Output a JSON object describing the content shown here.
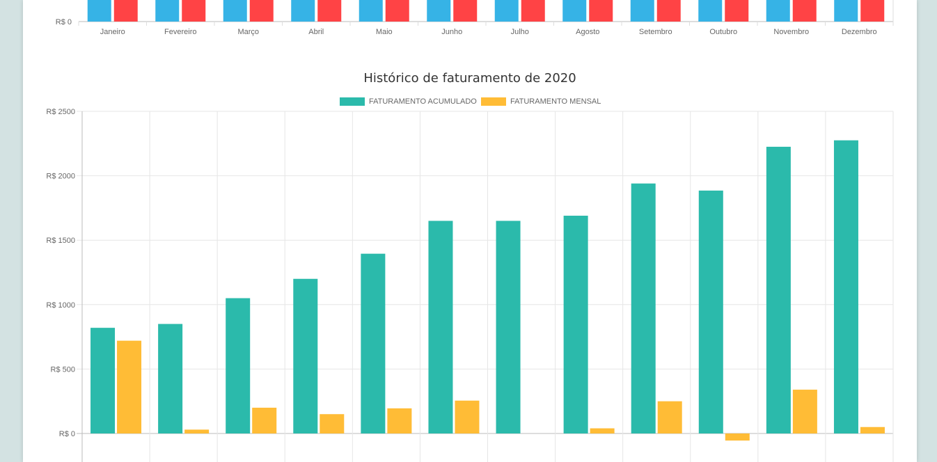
{
  "chart_data": [
    {
      "type": "bar",
      "title": "",
      "categories": [
        "Janeiro",
        "Fevereiro",
        "Março",
        "Abril",
        "Maio",
        "Junho",
        "Julho",
        "Agosto",
        "Setembro",
        "Outubro",
        "Novembro",
        "Dezembro"
      ],
      "series": [
        {
          "color": "#36b3e6"
        },
        {
          "color": "#ff4345"
        }
      ],
      "y_tick_labels": [
        "R$ 0"
      ],
      "note_visible": "cropped; only bottom of bars, baseline tick and month labels visible"
    },
    {
      "type": "bar",
      "title": "Histórico de faturamento de 2020",
      "categories": [
        "",
        "",
        "",
        "",
        "",
        "",
        "",
        "",
        "",
        "",
        "",
        ""
      ],
      "series": [
        {
          "name": "FATURAMENTO ACUMULADO",
          "color": "#2bbaab",
          "values": [
            820,
            850,
            1050,
            1200,
            1395,
            1650,
            1650,
            1690,
            1940,
            1885,
            2225,
            2275
          ]
        },
        {
          "name": "FATURAMENTO MENSAL",
          "color": "#ffbc36",
          "values": [
            720,
            30,
            200,
            150,
            195,
            255,
            0,
            40,
            250,
            -55,
            340,
            50
          ]
        }
      ],
      "y_tick_labels": [
        "R$ 0",
        "R$ 500",
        "R$ 1000",
        "R$ 1500",
        "R$ 2000",
        "R$ 2500"
      ],
      "y_ticks": [
        0,
        500,
        1000,
        1500,
        2000,
        2500
      ],
      "ylim": [
        -250,
        2500
      ],
      "grid": true,
      "legend_position": "top"
    }
  ]
}
